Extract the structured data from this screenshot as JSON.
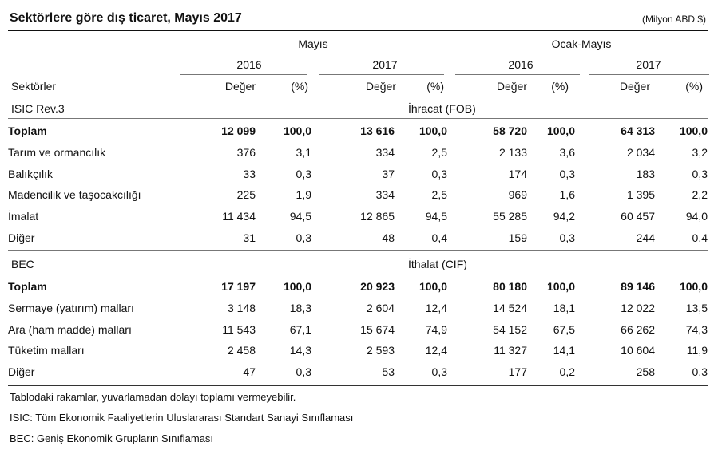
{
  "title": "Sektörlere göre dış ticaret, Mayıs 2017",
  "unit": "(Milyon ABD $)",
  "headers": {
    "group_mayis": "Mayıs",
    "group_ocak_mayis": "Ocak-Mayıs",
    "year_2016": "2016",
    "year_2017": "2017",
    "sektorler": "Sektörler",
    "deger": "Değer",
    "pct": "(%)"
  },
  "sections": [
    {
      "code": "ISIC Rev.3",
      "flow": "İhracat (FOB)",
      "rows": [
        {
          "label": "Toplam",
          "total": true,
          "v": [
            "12 099",
            "100,0",
            "13 616",
            "100,0",
            "58 720",
            "100,0",
            "64 313",
            "100,0"
          ]
        },
        {
          "label": "Tarım ve ormancılık",
          "v": [
            "376",
            "3,1",
            "334",
            "2,5",
            "2 133",
            "3,6",
            "2 034",
            "3,2"
          ]
        },
        {
          "label": "Balıkçılık",
          "v": [
            "33",
            "0,3",
            "37",
            "0,3",
            "174",
            "0,3",
            "183",
            "0,3"
          ]
        },
        {
          "label": "Madencilik ve taşocakcılığı",
          "v": [
            "225",
            "1,9",
            "334",
            "2,5",
            "969",
            "1,6",
            "1 395",
            "2,2"
          ]
        },
        {
          "label": "İmalat",
          "v": [
            "11 434",
            "94,5",
            "12 865",
            "94,5",
            "55 285",
            "94,2",
            "60 457",
            "94,0"
          ]
        },
        {
          "label": "Diğer",
          "v": [
            "31",
            "0,3",
            "48",
            "0,4",
            "159",
            "0,3",
            "244",
            "0,4"
          ]
        }
      ]
    },
    {
      "code": "BEC",
      "flow": "İthalat (CIF)",
      "rows": [
        {
          "label": "Toplam",
          "total": true,
          "v": [
            "17 197",
            "100,0",
            "20 923",
            "100,0",
            "80 180",
            "100,0",
            "89 146",
            "100,0"
          ]
        },
        {
          "label": "Sermaye (yatırım) malları",
          "v": [
            "3 148",
            "18,3",
            "2 604",
            "12,4",
            "14 524",
            "18,1",
            "12 022",
            "13,5"
          ]
        },
        {
          "label": "Ara (ham madde) malları",
          "v": [
            "11 543",
            "67,1",
            "15 674",
            "74,9",
            "54 152",
            "67,5",
            "66 262",
            "74,3"
          ]
        },
        {
          "label": "Tüketim malları",
          "v": [
            "2 458",
            "14,3",
            "2 593",
            "12,4",
            "11 327",
            "14,1",
            "10 604",
            "11,9"
          ]
        },
        {
          "label": "Diğer",
          "v": [
            "47",
            "0,3",
            "53",
            "0,3",
            "177",
            "0,2",
            "258",
            "0,3"
          ]
        }
      ]
    }
  ],
  "notes": [
    "Tablodaki rakamlar, yuvarlamadan dolayı toplamı vermeyebilir.",
    "ISIC: Tüm Ekonomik Faaliyetlerin Uluslararası Standart Sanayi Sınıflaması",
    "BEC: Geniş Ekonomik Grupların Sınıflaması"
  ]
}
